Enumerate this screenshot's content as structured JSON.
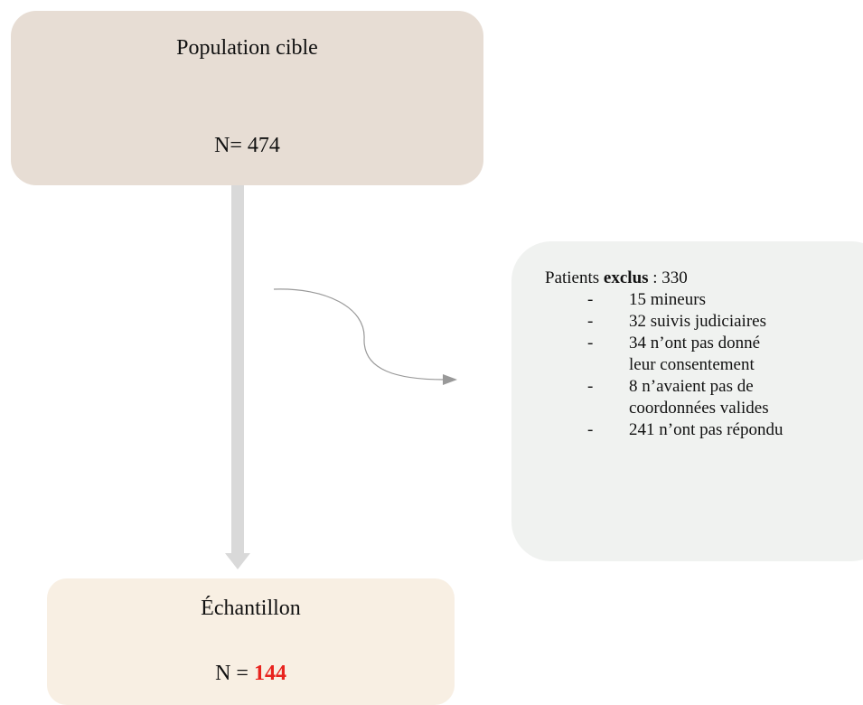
{
  "top": {
    "title": "Population cible",
    "count": "N= 474"
  },
  "excluded": {
    "label_prefix": "Patients ",
    "label_bold": "exclus",
    "label_suffix": " : 330",
    "items": [
      {
        "marker": "-",
        "text": "15 mineurs"
      },
      {
        "marker": "-",
        "text": "32 suivis judiciaires"
      },
      {
        "marker": "-",
        "text": "34 n’ont pas donné leur consentement"
      },
      {
        "marker": "-",
        "text": "8 n’avaient pas de coordonnées valides"
      },
      {
        "marker": "-",
        "text": "241 n’ont pas répondu"
      }
    ]
  },
  "sample": {
    "title": "Échantillon",
    "count_prefix": "N = ",
    "count_value": "144"
  }
}
